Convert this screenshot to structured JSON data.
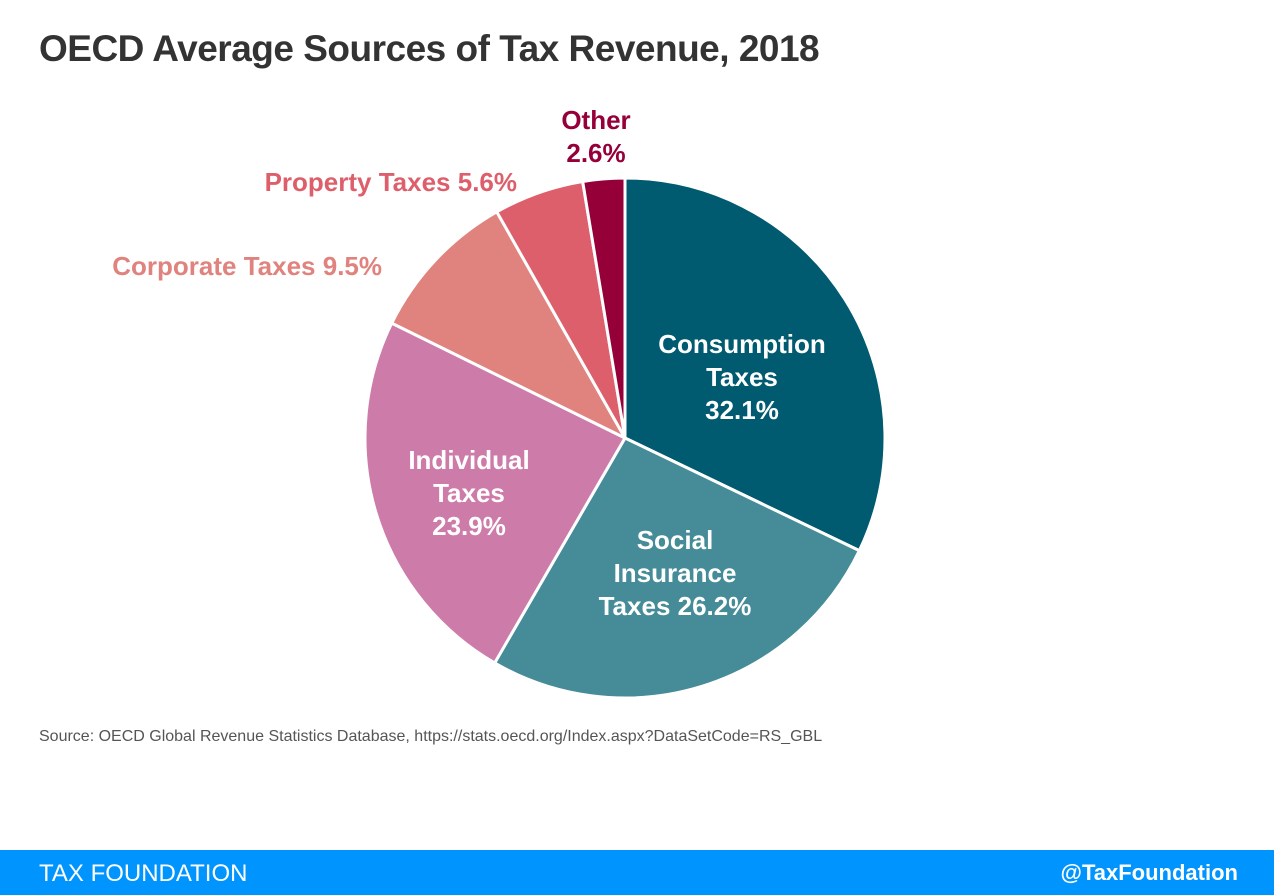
{
  "chart_data": {
    "type": "pie",
    "title": "OECD Average Sources of Tax Revenue, 2018",
    "categories": [
      "Consumption Taxes",
      "Social Insurance Taxes",
      "Individual Taxes",
      "Corporate Taxes",
      "Property Taxes",
      "Other"
    ],
    "values": [
      32.1,
      26.2,
      23.9,
      9.5,
      5.6,
      2.6
    ],
    "value_labels": [
      "32.1%",
      "26.2%",
      "23.9%",
      "9.5%",
      "5.6%",
      "2.6%"
    ],
    "colors": [
      "#005a70",
      "#458b98",
      "#cd7ba8",
      "#e0837e",
      "#dd5f6b",
      "#960039"
    ],
    "source": "Source: OECD Global Revenue Statistics Database, https://stats.oecd.org/Index.aspx?DataSetCode=RS_GBL",
    "footer_left": "TAX FOUNDATION",
    "footer_right": "@TaxFoundation"
  }
}
